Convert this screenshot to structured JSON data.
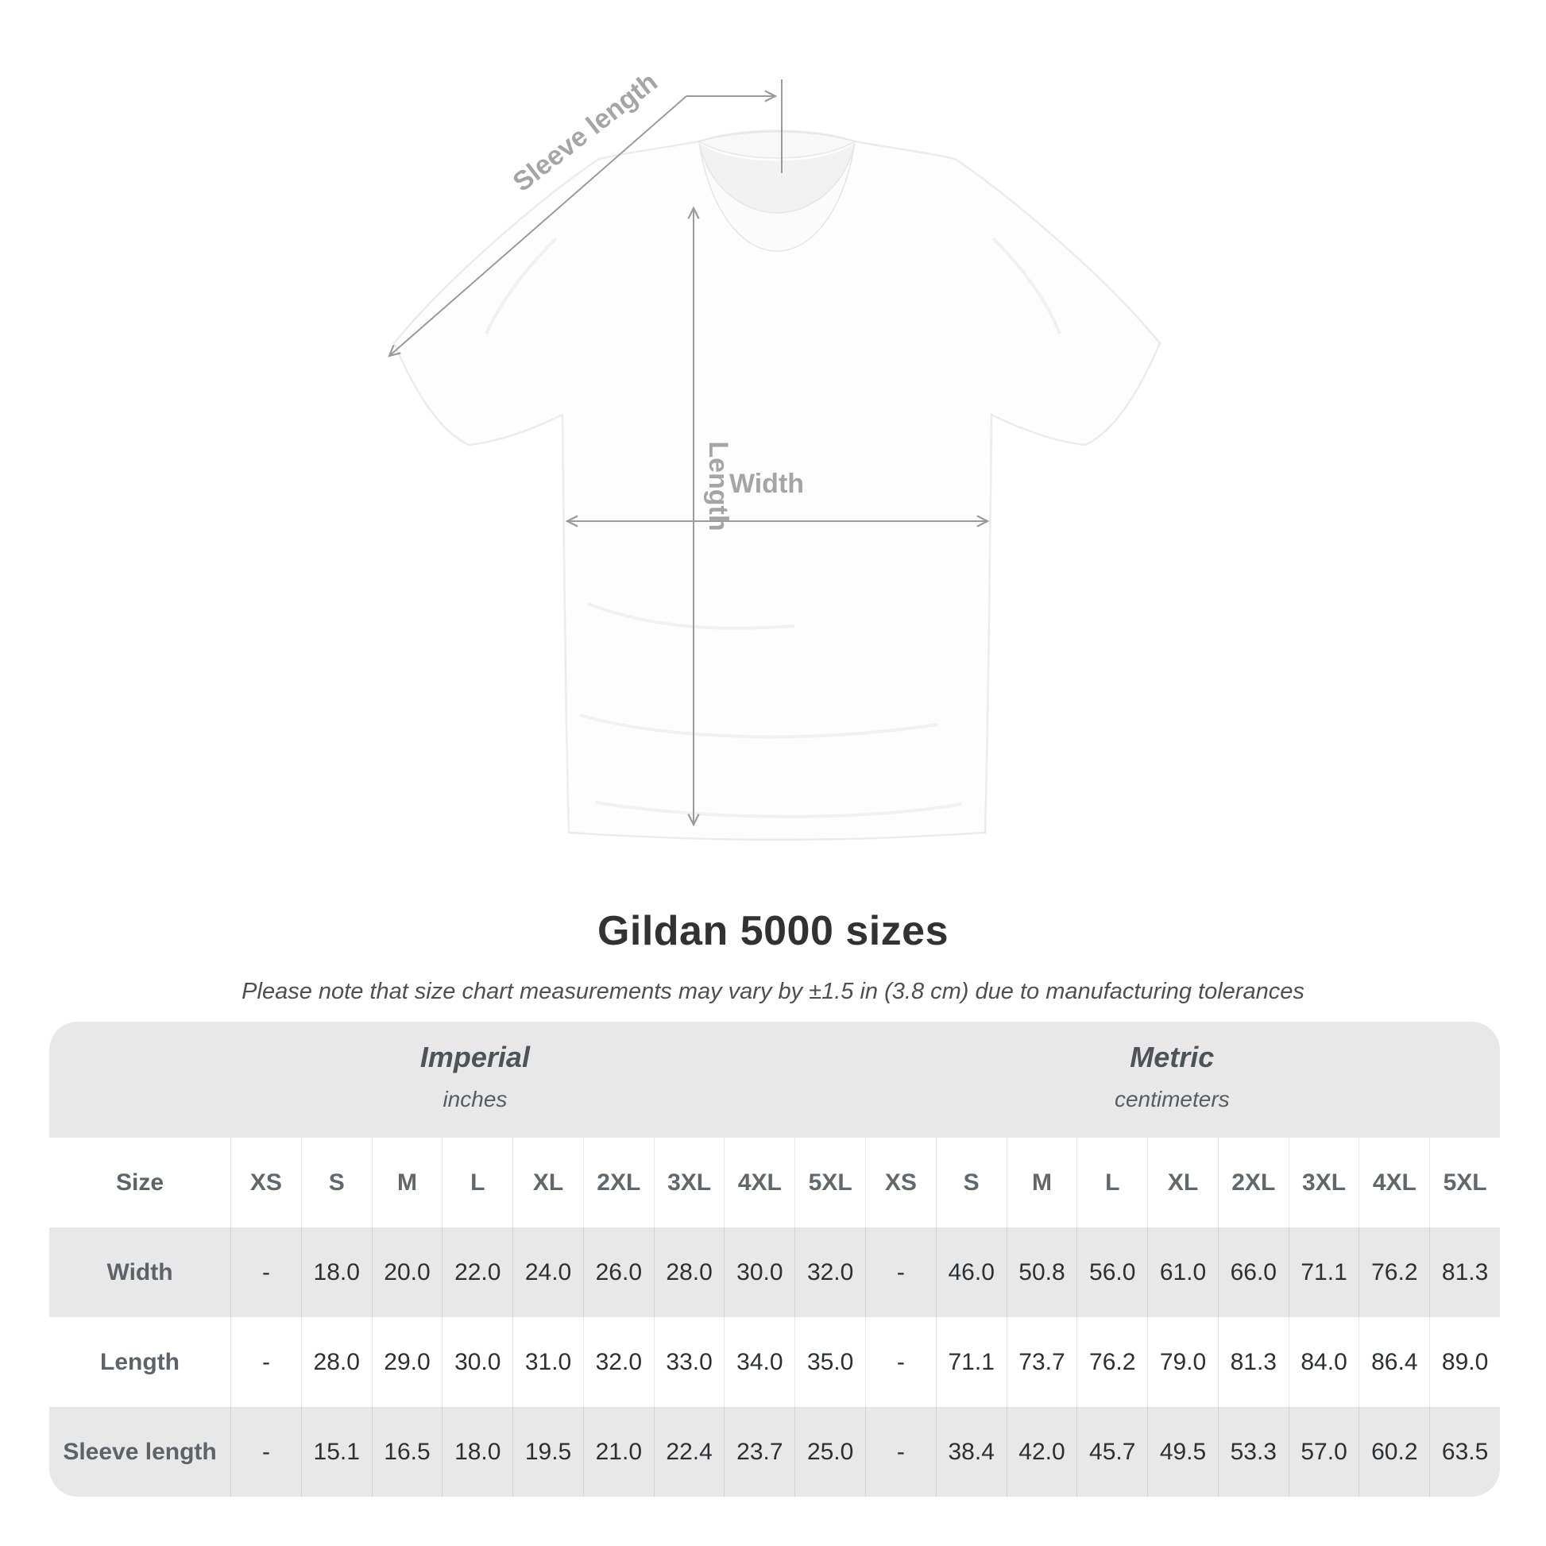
{
  "diagram": {
    "labels": {
      "sleeve_length": "Sleeve length",
      "length": "Length",
      "width": "Width"
    },
    "line_color": "#9b9b9b",
    "label_color": "#a5a5a5"
  },
  "heading": {
    "title": "Gildan 5000 sizes",
    "subtitle": "Please note that size chart measurements may vary by ±1.5 in (3.8 cm) due to manufacturing tolerances"
  },
  "size_table": {
    "corner_label": "Size",
    "unit_groups": [
      {
        "label": "Imperial",
        "unit": "inches"
      },
      {
        "label": "Metric",
        "unit": "centimeters"
      }
    ],
    "size_columns": [
      "XS",
      "S",
      "M",
      "L",
      "XL",
      "2XL",
      "3XL",
      "4XL",
      "5XL"
    ],
    "rows": [
      {
        "label": "Width",
        "imperial": [
          "-",
          "18.0",
          "20.0",
          "22.0",
          "24.0",
          "26.0",
          "28.0",
          "30.0",
          "32.0"
        ],
        "metric": [
          "-",
          "46.0",
          "50.8",
          "56.0",
          "61.0",
          "66.0",
          "71.1",
          "76.2",
          "81.3"
        ]
      },
      {
        "label": "Length",
        "imperial": [
          "-",
          "28.0",
          "29.0",
          "30.0",
          "31.0",
          "32.0",
          "33.0",
          "34.0",
          "35.0"
        ],
        "metric": [
          "-",
          "71.1",
          "73.7",
          "76.2",
          "79.0",
          "81.3",
          "84.0",
          "86.4",
          "89.0"
        ]
      },
      {
        "label": "Sleeve length",
        "imperial": [
          "-",
          "15.1",
          "16.5",
          "18.0",
          "19.5",
          "21.0",
          "22.4",
          "23.7",
          "25.0"
        ],
        "metric": [
          "-",
          "38.4",
          "42.0",
          "45.7",
          "49.5",
          "53.3",
          "57.0",
          "60.2",
          "63.5"
        ]
      }
    ],
    "colors": {
      "band_bg": "#e9e8e8",
      "alt_row_bg": "#e9e8e8",
      "row_bg": "#ffffff"
    }
  },
  "chart_data": {
    "type": "table",
    "title": "Gildan 5000 sizes",
    "note": "Please note that size chart measurements may vary by ±1.5 in (3.8 cm) due to manufacturing tolerances",
    "column_groups": [
      {
        "label": "Imperial",
        "unit": "inches",
        "columns": [
          "XS",
          "S",
          "M",
          "L",
          "XL",
          "2XL",
          "3XL",
          "4XL",
          "5XL"
        ]
      },
      {
        "label": "Metric",
        "unit": "centimeters",
        "columns": [
          "XS",
          "S",
          "M",
          "L",
          "XL",
          "2XL",
          "3XL",
          "4XL",
          "5XL"
        ]
      }
    ],
    "rows": [
      {
        "label": "Width",
        "imperial": [
          null,
          18.0,
          20.0,
          22.0,
          24.0,
          26.0,
          28.0,
          30.0,
          32.0
        ],
        "metric": [
          null,
          46.0,
          50.8,
          56.0,
          61.0,
          66.0,
          71.1,
          76.2,
          81.3
        ]
      },
      {
        "label": "Length",
        "imperial": [
          null,
          28.0,
          29.0,
          30.0,
          31.0,
          32.0,
          33.0,
          34.0,
          35.0
        ],
        "metric": [
          null,
          71.1,
          73.7,
          76.2,
          79.0,
          81.3,
          84.0,
          86.4,
          89.0
        ]
      },
      {
        "label": "Sleeve length",
        "imperial": [
          null,
          15.1,
          16.5,
          18.0,
          19.5,
          21.0,
          22.4,
          23.7,
          25.0
        ],
        "metric": [
          null,
          38.4,
          42.0,
          45.7,
          49.5,
          53.3,
          57.0,
          60.2,
          63.5
        ]
      }
    ]
  }
}
